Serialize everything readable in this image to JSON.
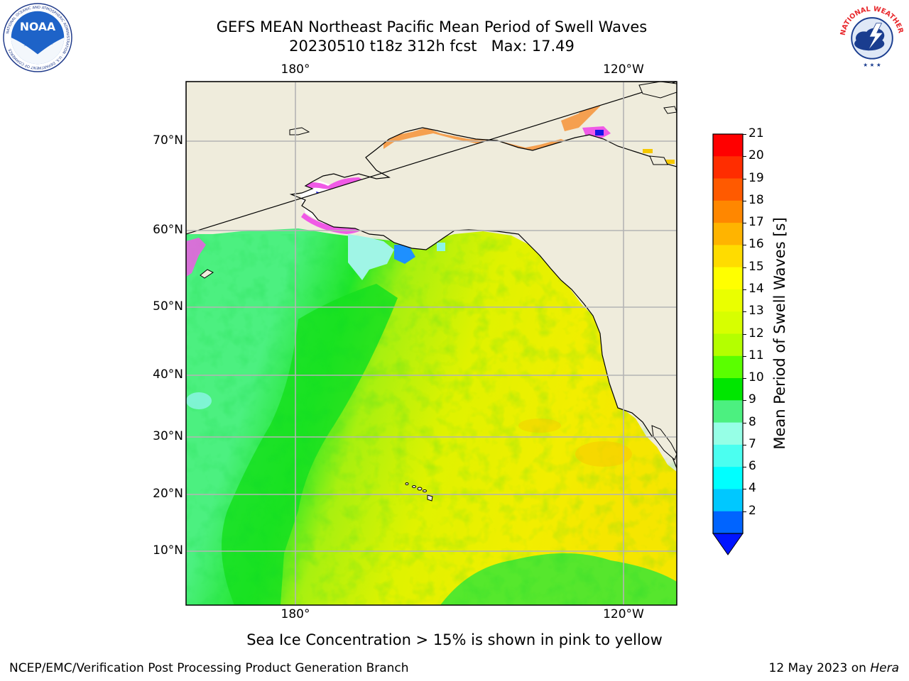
{
  "header": {
    "title_line1": "GEFS MEAN Northeast Pacific Mean Period of Swell Waves",
    "title_line2": "20230510 t18z 312h fcst   Max: 17.49"
  },
  "logos": {
    "left": {
      "name": "noaa-logo",
      "text": "NOAA",
      "ring_text": "NATIONAL OCEANIC AND ATMOSPHERIC ADMINISTRATION · U.S. DEPARTMENT OF COMMERCE"
    },
    "right": {
      "name": "nws-logo",
      "ring_text": "NATIONAL WEATHER SERVICE"
    }
  },
  "map": {
    "lon_labels_top": [
      "180°",
      "120°W"
    ],
    "lon_labels_bottom": [
      "180°",
      "120°W"
    ],
    "lat_labels": [
      "70°N",
      "60°N",
      "50°N",
      "40°N",
      "30°N",
      "20°N",
      "10°N"
    ],
    "colors": {
      "land": "#efecdc",
      "ocean_base_west": "#4cf080",
      "ocean_green": "#1ee628",
      "ocean_yellowgreen": "#c8f00a",
      "ocean_yellow": "#f5f000",
      "ice_pink": "#f05ae6",
      "ice_blue": "#1414e6",
      "grid": "#b4b4b4"
    }
  },
  "colorbar": {
    "label": "Mean Period of Swell Waves [s]",
    "ticks": [
      "21",
      "20",
      "19",
      "18",
      "17",
      "16",
      "15",
      "14",
      "13",
      "12",
      "11",
      "10",
      "9",
      "8",
      "7",
      "6",
      "4",
      "2"
    ],
    "tick_values": [
      21,
      20,
      19,
      18,
      17,
      16,
      15,
      14,
      13,
      12,
      11,
      10,
      9,
      8,
      7,
      6,
      4,
      2
    ],
    "colors_top_to_bottom": [
      "#ff0000",
      "#ff2d00",
      "#ff5a00",
      "#ff8700",
      "#ffb400",
      "#ffdc00",
      "#ffff00",
      "#eaff00",
      "#d7ff00",
      "#b4ff00",
      "#5aff00",
      "#00e600",
      "#4cf080",
      "#96ffe6",
      "#4bfff0",
      "#00ffff",
      "#00c8ff",
      "#0064ff"
    ],
    "extend_color": "#0014ff"
  },
  "caption": "Sea Ice Concentration > 15% is shown in pink to yellow",
  "footer": {
    "left": "NCEP/EMC/Verification Post Processing Product Generation Branch",
    "right_date": "12 May 2023 on ",
    "right_host": "Hera"
  }
}
